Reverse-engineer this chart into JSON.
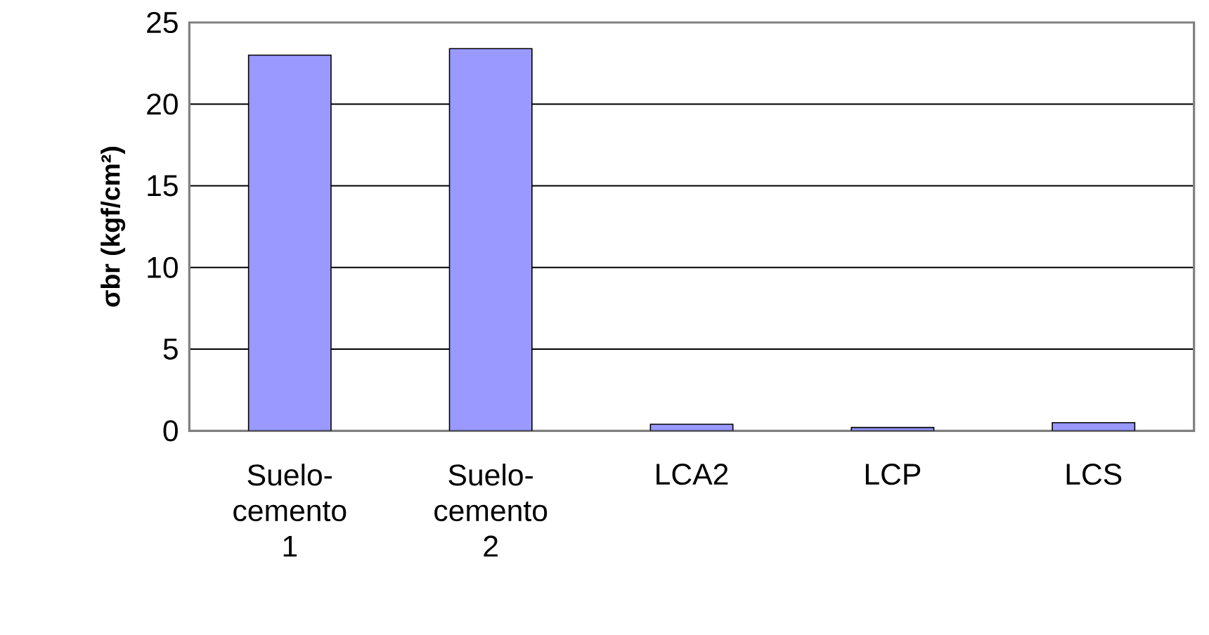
{
  "chart_data": {
    "type": "bar",
    "ylabel": "**σbr (kgf/cm²)**",
    "categories": [
      "Suelo-cemento 1",
      "Suelo-cemento 2",
      "LCA2",
      "LCP",
      "LCS"
    ],
    "values": [
      23.0,
      23.4,
      0.4,
      0.2,
      0.5
    ],
    "color": "#9999ff",
    "ylim": [
      0,
      25
    ],
    "yticks": [
      0,
      5,
      10,
      15,
      20,
      25
    ],
    "grid": "y"
  }
}
